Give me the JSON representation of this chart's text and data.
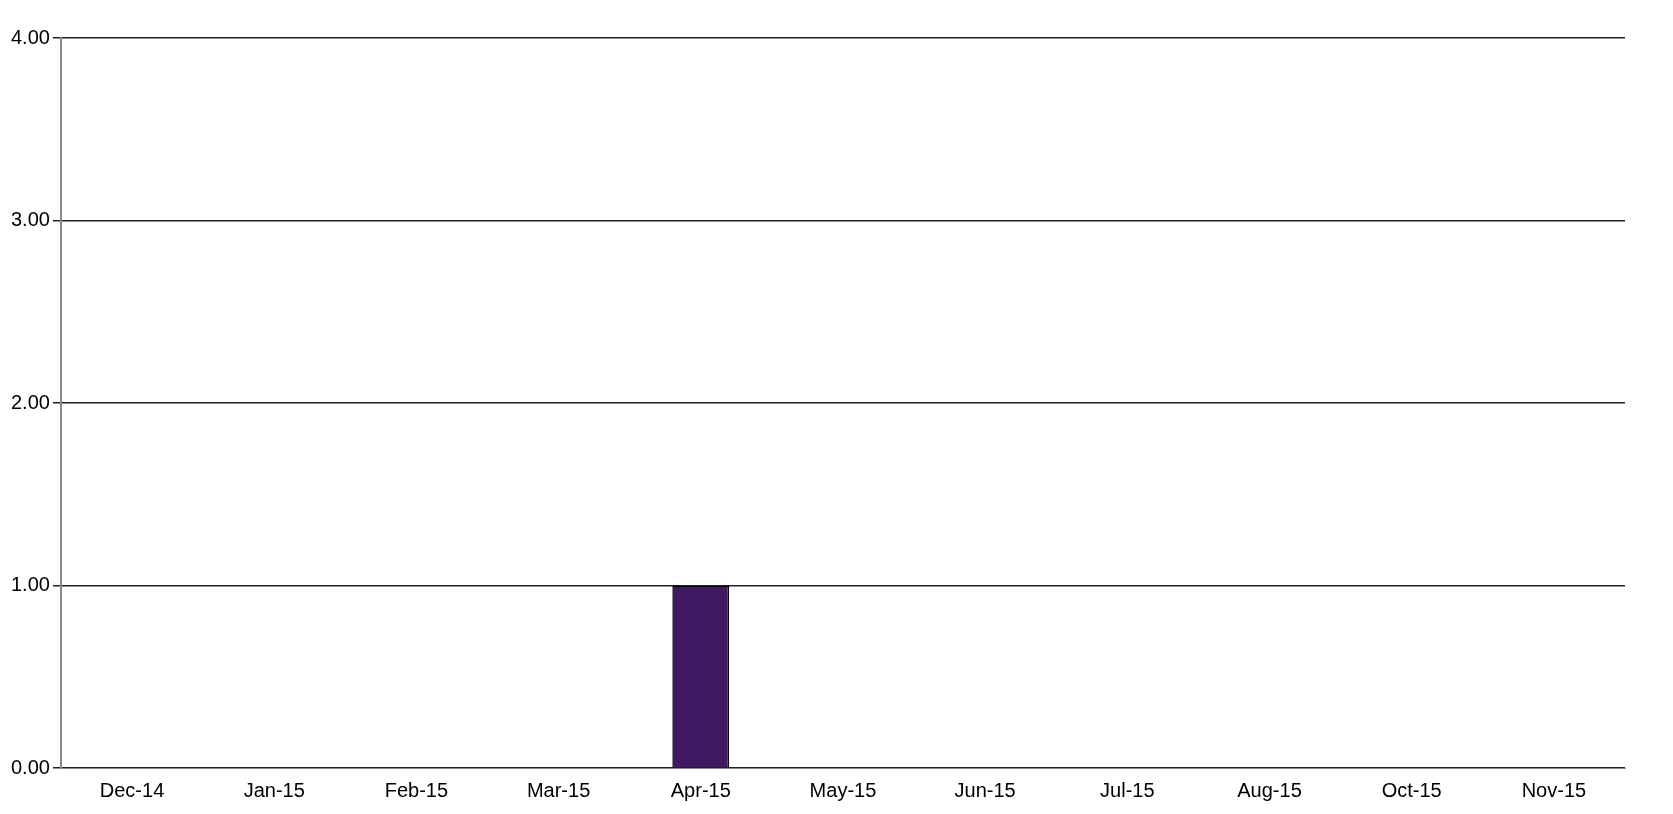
{
  "chart_data": {
    "type": "bar",
    "categories": [
      "Dec-14",
      "Jan-15",
      "Feb-15",
      "Mar-15",
      "Apr-15",
      "May-15",
      "Jun-15",
      "Jul-15",
      "Aug-15",
      "Oct-15",
      "Nov-15"
    ],
    "values": [
      0,
      0,
      0,
      0,
      1,
      0,
      0,
      0,
      0,
      0,
      0
    ],
    "color": "#3f1a63",
    "ylim": [
      0,
      4
    ],
    "yticks": [
      {
        "value": 0,
        "label": "0.00"
      },
      {
        "value": 1,
        "label": "1.00"
      },
      {
        "value": 2,
        "label": "2.00"
      },
      {
        "value": 3,
        "label": "3.00"
      },
      {
        "value": 4,
        "label": "4.00"
      }
    ],
    "grid": "y",
    "legend": false
  }
}
